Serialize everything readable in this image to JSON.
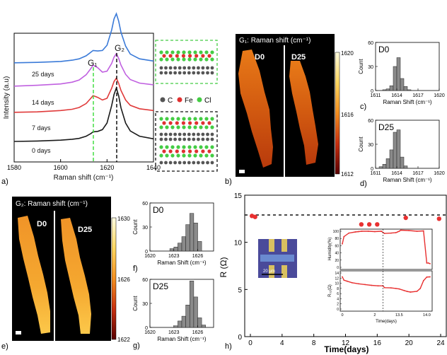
{
  "chart_data": [
    {
      "panel": "a)",
      "type": "line",
      "title": "",
      "xlabel": "Raman shift (cm⁻¹)",
      "ylabel": "Intensity (a.u)",
      "xlim": [
        1580,
        1640
      ],
      "x_ticks": [
        "1580",
        "1600",
        "1620",
        "1640"
      ],
      "peak_labels": [
        "G₁",
        "G₂"
      ],
      "peak_positions": [
        1614,
        1624
      ],
      "series": [
        {
          "name": "0 days",
          "color": "#1a1a1a",
          "x": [
            1580,
            1590,
            1600,
            1605,
            1608,
            1611,
            1613,
            1614,
            1616,
            1618,
            1620,
            1622,
            1623,
            1624,
            1625,
            1626,
            1628,
            1630,
            1634,
            1640
          ],
          "values": [
            0.08,
            0.09,
            0.11,
            0.13,
            0.15,
            0.2,
            0.26,
            0.3,
            0.31,
            0.35,
            0.5,
            0.9,
            1.15,
            1.3,
            1.12,
            0.85,
            0.5,
            0.32,
            0.2,
            0.14
          ]
        },
        {
          "name": "7 days",
          "color": "#e03a3a",
          "x": [
            1580,
            1590,
            1600,
            1605,
            1608,
            1611,
            1613,
            1614,
            1616,
            1618,
            1620,
            1622,
            1623,
            1624,
            1625,
            1626,
            1628,
            1630,
            1634,
            1640
          ],
          "values": [
            0.1,
            0.11,
            0.14,
            0.17,
            0.21,
            0.3,
            0.42,
            0.48,
            0.44,
            0.38,
            0.42,
            0.65,
            0.8,
            0.88,
            0.76,
            0.6,
            0.38,
            0.26,
            0.18,
            0.14
          ]
        },
        {
          "name": "14 days",
          "color": "#c060e0",
          "x": [
            1580,
            1590,
            1600,
            1605,
            1608,
            1611,
            1613,
            1614,
            1616,
            1618,
            1620,
            1622,
            1623,
            1624,
            1625,
            1626,
            1628,
            1630,
            1634,
            1640
          ],
          "values": [
            0.1,
            0.12,
            0.15,
            0.19,
            0.24,
            0.36,
            0.5,
            0.58,
            0.52,
            0.42,
            0.44,
            0.62,
            0.76,
            0.84,
            0.73,
            0.58,
            0.37,
            0.25,
            0.17,
            0.13
          ]
        },
        {
          "name": "25 days",
          "color": "#3a7ad8",
          "x": [
            1580,
            1590,
            1600,
            1605,
            1608,
            1611,
            1613,
            1614,
            1616,
            1618,
            1620,
            1622,
            1623,
            1624,
            1625,
            1626,
            1628,
            1630,
            1634,
            1640
          ],
          "values": [
            0.1,
            0.11,
            0.13,
            0.16,
            0.19,
            0.26,
            0.34,
            0.38,
            0.37,
            0.38,
            0.5,
            0.85,
            1.1,
            1.22,
            1.05,
            0.8,
            0.48,
            0.3,
            0.19,
            0.14
          ]
        }
      ]
    },
    {
      "panel": "c)",
      "type": "bar",
      "label": "D0",
      "xlabel": "Raman Shift (cm⁻¹)",
      "ylabel": "Count",
      "ylim": [
        0,
        60
      ],
      "y_ticks": [
        "0",
        "30",
        "60"
      ],
      "x_ticks": [
        "1611",
        "1614",
        "1617",
        "1620"
      ],
      "bin_centers": [
        1612.25,
        1612.75,
        1613.25,
        1613.75,
        1614.25,
        1614.75,
        1615.25,
        1615.75
      ],
      "values": [
        1,
        2,
        6,
        30,
        41,
        15,
        5,
        1
      ]
    },
    {
      "panel": "d)",
      "type": "bar",
      "label": "D25",
      "xlabel": "Raman Shift (cm⁻¹)",
      "ylabel": "Count",
      "ylim": [
        0,
        60
      ],
      "y_ticks": [
        "0",
        "30",
        "60"
      ],
      "x_ticks": [
        "1611",
        "1614",
        "1617",
        "1620"
      ],
      "bin_centers": [
        1611.75,
        1612.25,
        1612.75,
        1613.25,
        1613.75,
        1614.25,
        1614.75,
        1615.25
      ],
      "values": [
        2,
        5,
        12,
        23,
        45,
        48,
        14,
        3
      ]
    },
    {
      "panel": "f)",
      "type": "bar",
      "label": "D0",
      "xlabel": "Raman Shift (cm⁻¹)",
      "ylabel": "Count",
      "ylim": [
        0,
        60
      ],
      "y_ticks": [
        "0",
        "30",
        "60"
      ],
      "x_ticks": [
        "1620",
        "1623",
        "1626"
      ],
      "bin_centers": [
        1622.75,
        1623.25,
        1623.75,
        1624.25,
        1624.75,
        1625.25,
        1625.75,
        1626.25
      ],
      "values": [
        3,
        5,
        10,
        18,
        33,
        47,
        35,
        12
      ]
    },
    {
      "panel": "g)",
      "type": "bar",
      "label": "D25",
      "xlabel": "Raman Shift (cm⁻¹)",
      "ylabel": "Count",
      "ylim": [
        0,
        60
      ],
      "y_ticks": [
        "0",
        "30",
        "60"
      ],
      "x_ticks": [
        "1620",
        "1623",
        "1626"
      ],
      "bin_centers": [
        1623.25,
        1623.75,
        1624.25,
        1624.75,
        1625.25,
        1625.75,
        1626.25,
        1626.75
      ],
      "values": [
        2,
        8,
        14,
        28,
        58,
        38,
        12,
        3
      ]
    },
    {
      "panel": "h)",
      "type": "scatter",
      "xlabel": "Time(days)",
      "ylabel": "R (Ω)",
      "xlim": [
        0,
        24
      ],
      "ylim": [
        0,
        15
      ],
      "x_ticks": [
        "0",
        "4",
        "8",
        "12",
        "16",
        "20",
        "24"
      ],
      "y_ticks": [
        "0",
        "5",
        "10",
        "15"
      ],
      "reference_line": 12.9,
      "x": [
        0.2,
        0.6,
        14,
        15,
        16,
        19.6,
        23.8
      ],
      "values": [
        12.8,
        12.7,
        11.9,
        11.9,
        11.9,
        12.6,
        12.5
      ]
    },
    {
      "panel": "h) inset top",
      "type": "line",
      "ylabel": "Humidity(%)",
      "ylim": [
        0,
        100
      ],
      "y_ticks": [
        "0",
        "20",
        "40",
        "60",
        "80",
        "100"
      ],
      "x": [
        0.0,
        0.1,
        0.4,
        0.8,
        1.0,
        1.2,
        1.6,
        2.0,
        2.4,
        2.6,
        3.0,
        3.3,
        3.4,
        3.5,
        3.6,
        4.1,
        4.6,
        5.0,
        5.2,
        5.3,
        5.4
      ],
      "values": [
        65,
        85,
        95,
        98,
        99,
        100,
        100,
        99,
        100,
        94,
        95,
        96,
        98,
        100,
        103,
        102,
        100,
        101,
        12,
        12,
        10
      ]
    },
    {
      "panel": "h) inset bottom",
      "type": "line",
      "ylabel": "R₀₂(Ω)",
      "xlabel": "Time(days)",
      "ylim": [
        0,
        14
      ],
      "y_ticks": [
        "0",
        "2",
        "4",
        "6",
        "8",
        "10",
        "12",
        "14"
      ],
      "x_ticks": [
        "0",
        "2",
        "13.5",
        "14.0"
      ],
      "x": [
        0.0,
        0.1,
        0.3,
        0.6,
        1.0,
        1.4,
        1.8,
        2.2,
        2.5,
        2.6,
        3.0,
        3.3,
        3.5,
        3.8,
        4.0,
        4.2,
        4.6,
        4.8,
        5.0,
        5.2,
        5.4
      ],
      "values": [
        12.5,
        11.2,
        10.8,
        10.2,
        9.8,
        9.5,
        9.2,
        9.0,
        9.0,
        8.3,
        8.2,
        8.0,
        7.8,
        7.2,
        6.8,
        6.6,
        6.9,
        8.0,
        11.0,
        12.4,
        12.5
      ]
    }
  ],
  "panel_labels": [
    "a)",
    "b)",
    "c)",
    "d)",
    "e)",
    "f)",
    "g)",
    "h)"
  ],
  "map_b": {
    "title": "G₁: Raman shift (cm⁻¹)",
    "left_label": "D0",
    "right_label": "D25",
    "colorbar_ticks": [
      "1620",
      "1616",
      "1612"
    ]
  },
  "map_e": {
    "title": "G₂: Raman shift (cm⁻¹)",
    "left_label": "D0",
    "right_label": "D25",
    "colorbar_ticks": [
      "1630",
      "1626",
      "1622"
    ]
  },
  "legend": {
    "c_label": "C",
    "fe_label": "Fe",
    "cl_label": "Cl",
    "c_color": "#555555",
    "fe_color": "#e03030",
    "cl_color": "#44cc44"
  },
  "inset_micrograph": {
    "scale_label": "20 μm"
  }
}
